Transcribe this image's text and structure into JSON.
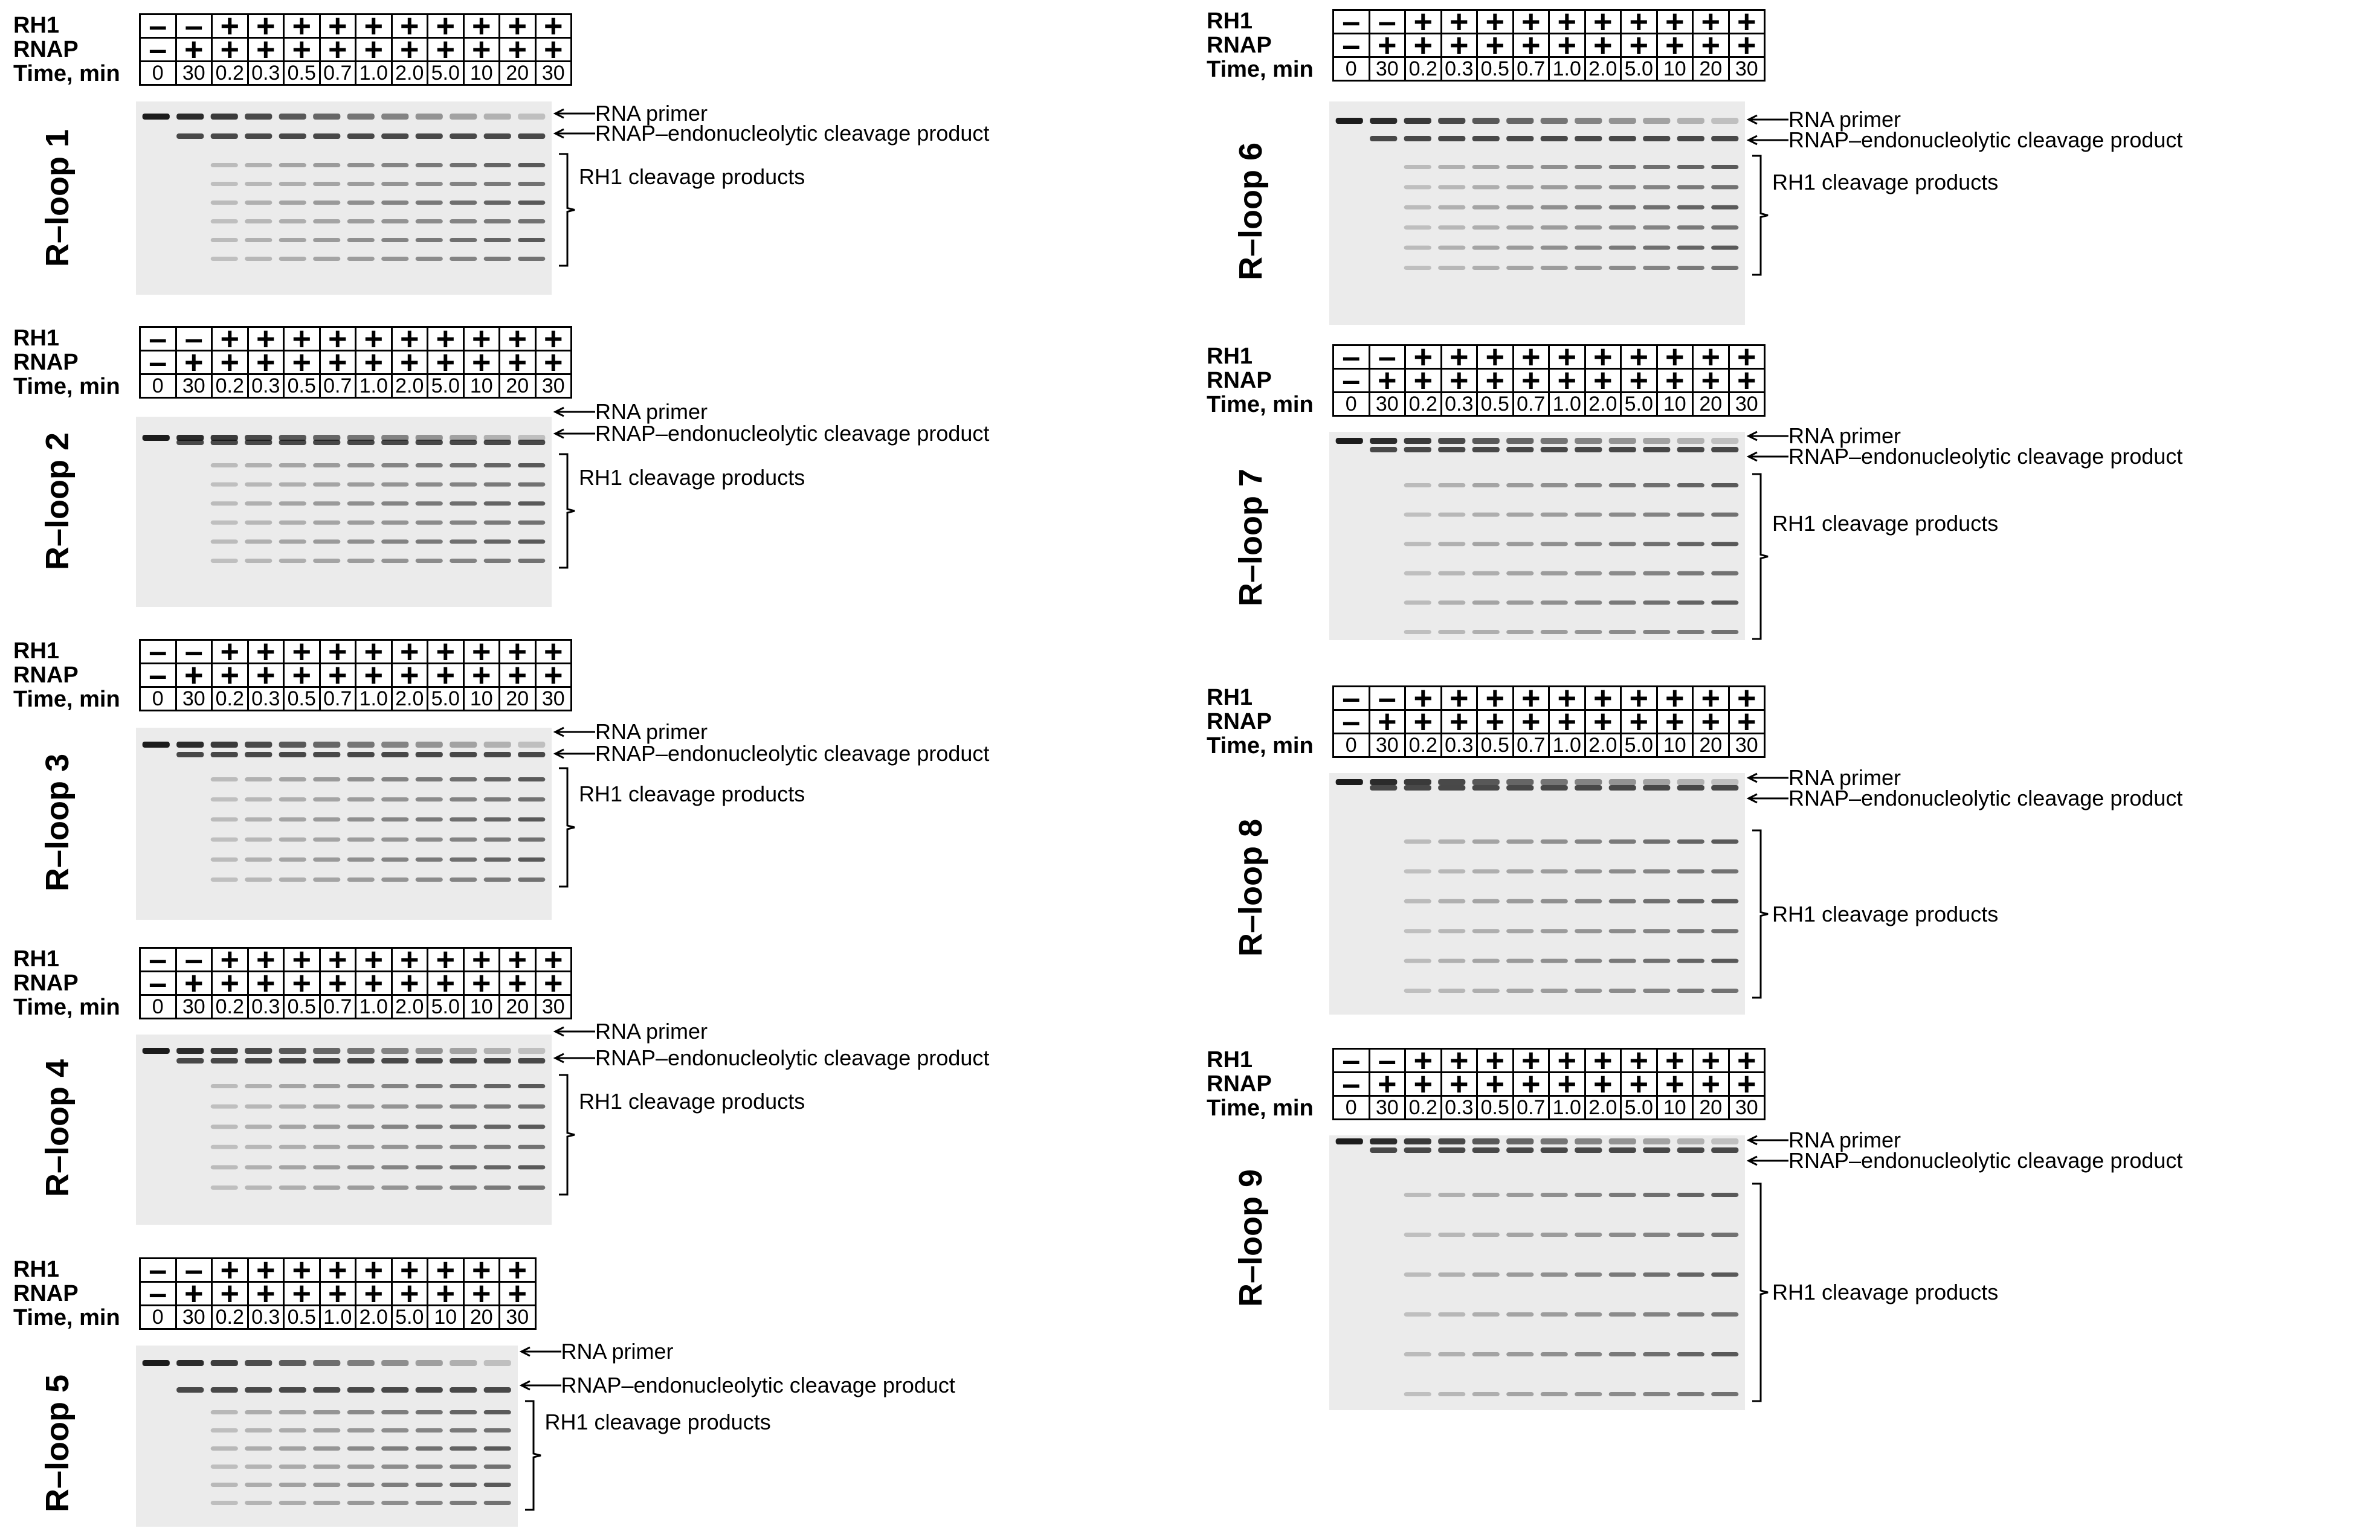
{
  "row_labels": {
    "rh1": "RH1",
    "rnap": "RNAP",
    "time": "Time, min"
  },
  "annotations": {
    "primer": "RNA primer",
    "endo": "RNAP–endonucleolytic cleavage product",
    "rh1_products": "RH1 cleavage products"
  },
  "panels": [
    {
      "title": "R–loop 1",
      "rh1": [
        "–",
        "–",
        "+",
        "+",
        "+",
        "+",
        "+",
        "+",
        "+",
        "+",
        "+",
        "+"
      ],
      "rnap": [
        "–",
        "+",
        "+",
        "+",
        "+",
        "+",
        "+",
        "+",
        "+",
        "+",
        "+",
        "+"
      ],
      "time": [
        "0",
        "30",
        "0.2",
        "0.3",
        "0.5",
        "0.7",
        "1.0",
        "2.0",
        "5.0",
        "10",
        "20",
        "30"
      ]
    },
    {
      "title": "R–loop 2",
      "rh1": [
        "–",
        "–",
        "+",
        "+",
        "+",
        "+",
        "+",
        "+",
        "+",
        "+",
        "+",
        "+"
      ],
      "rnap": [
        "–",
        "+",
        "+",
        "+",
        "+",
        "+",
        "+",
        "+",
        "+",
        "+",
        "+",
        "+"
      ],
      "time": [
        "0",
        "30",
        "0.2",
        "0.3",
        "0.5",
        "0.7",
        "1.0",
        "2.0",
        "5.0",
        "10",
        "20",
        "30"
      ]
    },
    {
      "title": "R–loop 3",
      "rh1": [
        "–",
        "–",
        "+",
        "+",
        "+",
        "+",
        "+",
        "+",
        "+",
        "+",
        "+",
        "+"
      ],
      "rnap": [
        "–",
        "+",
        "+",
        "+",
        "+",
        "+",
        "+",
        "+",
        "+",
        "+",
        "+",
        "+"
      ],
      "time": [
        "0",
        "30",
        "0.2",
        "0.3",
        "0.5",
        "0.7",
        "1.0",
        "2.0",
        "5.0",
        "10",
        "20",
        "30"
      ]
    },
    {
      "title": "R–loop 4",
      "rh1": [
        "–",
        "–",
        "+",
        "+",
        "+",
        "+",
        "+",
        "+",
        "+",
        "+",
        "+",
        "+"
      ],
      "rnap": [
        "–",
        "+",
        "+",
        "+",
        "+",
        "+",
        "+",
        "+",
        "+",
        "+",
        "+",
        "+"
      ],
      "time": [
        "0",
        "30",
        "0.2",
        "0.3",
        "0.5",
        "0.7",
        "1.0",
        "2.0",
        "5.0",
        "10",
        "20",
        "30"
      ]
    },
    {
      "title": "R–loop 5",
      "rh1": [
        "–",
        "–",
        "+",
        "+",
        "+",
        "+",
        "+",
        "+",
        "+",
        "+",
        "+"
      ],
      "rnap": [
        "–",
        "+",
        "+",
        "+",
        "+",
        "+",
        "+",
        "+",
        "+",
        "+",
        "+"
      ],
      "time": [
        "0",
        "30",
        "0.2",
        "0.3",
        "0.5",
        "1.0",
        "2.0",
        "5.0",
        "10",
        "20",
        "30"
      ]
    },
    {
      "title": "R–loop 6",
      "rh1": [
        "–",
        "–",
        "+",
        "+",
        "+",
        "+",
        "+",
        "+",
        "+",
        "+",
        "+",
        "+"
      ],
      "rnap": [
        "–",
        "+",
        "+",
        "+",
        "+",
        "+",
        "+",
        "+",
        "+",
        "+",
        "+",
        "+"
      ],
      "time": [
        "0",
        "30",
        "0.2",
        "0.3",
        "0.5",
        "0.7",
        "1.0",
        "2.0",
        "5.0",
        "10",
        "20",
        "30"
      ]
    },
    {
      "title": "R–loop 7",
      "rh1": [
        "–",
        "–",
        "+",
        "+",
        "+",
        "+",
        "+",
        "+",
        "+",
        "+",
        "+",
        "+"
      ],
      "rnap": [
        "–",
        "+",
        "+",
        "+",
        "+",
        "+",
        "+",
        "+",
        "+",
        "+",
        "+",
        "+"
      ],
      "time": [
        "0",
        "30",
        "0.2",
        "0.3",
        "0.5",
        "0.7",
        "1.0",
        "2.0",
        "5.0",
        "10",
        "20",
        "30"
      ]
    },
    {
      "title": "R–loop 8",
      "rh1": [
        "–",
        "–",
        "+",
        "+",
        "+",
        "+",
        "+",
        "+",
        "+",
        "+",
        "+",
        "+"
      ],
      "rnap": [
        "–",
        "+",
        "+",
        "+",
        "+",
        "+",
        "+",
        "+",
        "+",
        "+",
        "+",
        "+"
      ],
      "time": [
        "0",
        "30",
        "0.2",
        "0.3",
        "0.5",
        "0.7",
        "1.0",
        "2.0",
        "5.0",
        "10",
        "20",
        "30"
      ]
    },
    {
      "title": "R–loop 9",
      "rh1": [
        "–",
        "–",
        "+",
        "+",
        "+",
        "+",
        "+",
        "+",
        "+",
        "+",
        "+",
        "+"
      ],
      "rnap": [
        "–",
        "+",
        "+",
        "+",
        "+",
        "+",
        "+",
        "+",
        "+",
        "+",
        "+",
        "+"
      ],
      "time": [
        "0",
        "30",
        "0.2",
        "0.3",
        "0.5",
        "0.7",
        "1.0",
        "2.0",
        "5.0",
        "10",
        "20",
        "30"
      ]
    }
  ]
}
